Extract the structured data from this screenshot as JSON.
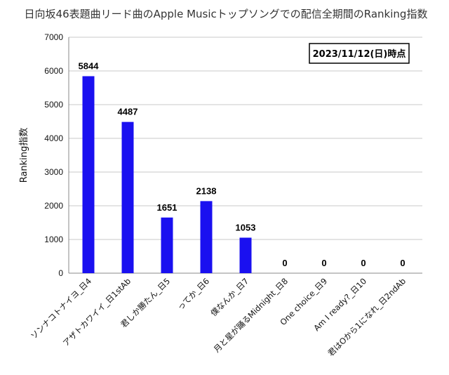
{
  "chart_data": {
    "type": "bar",
    "title": "日向坂46表題曲リード曲のApple Musicトップソングでの配信全期間のRanking指数",
    "annotation": "2023/11/12(日)時点",
    "xlabel": "",
    "ylabel": "Ranking指数",
    "ylim": [
      0,
      7000
    ],
    "yticks": [
      "0",
      "1000",
      "2000",
      "3000",
      "4000",
      "5000",
      "6000",
      "7000"
    ],
    "grid": true,
    "bar_color": "#1a10f0",
    "categories": [
      "ソンナコトナイヨ_日4",
      "アザトカワイイ_日1stAb",
      "君しか勝たん_日5",
      "ってか_日6",
      "僕なんか_日7",
      "月と星が踊るMidnight_日8",
      "One choice_日9",
      "Am I ready?_日10",
      "君はOから1になれ_日2ndAb"
    ],
    "values": [
      5844,
      4487,
      1651,
      2138,
      1053,
      0,
      0,
      0,
      0
    ],
    "value_labels": [
      "5844",
      "4487",
      "1651",
      "2138",
      "1053",
      "0",
      "0",
      "0",
      "0"
    ]
  }
}
